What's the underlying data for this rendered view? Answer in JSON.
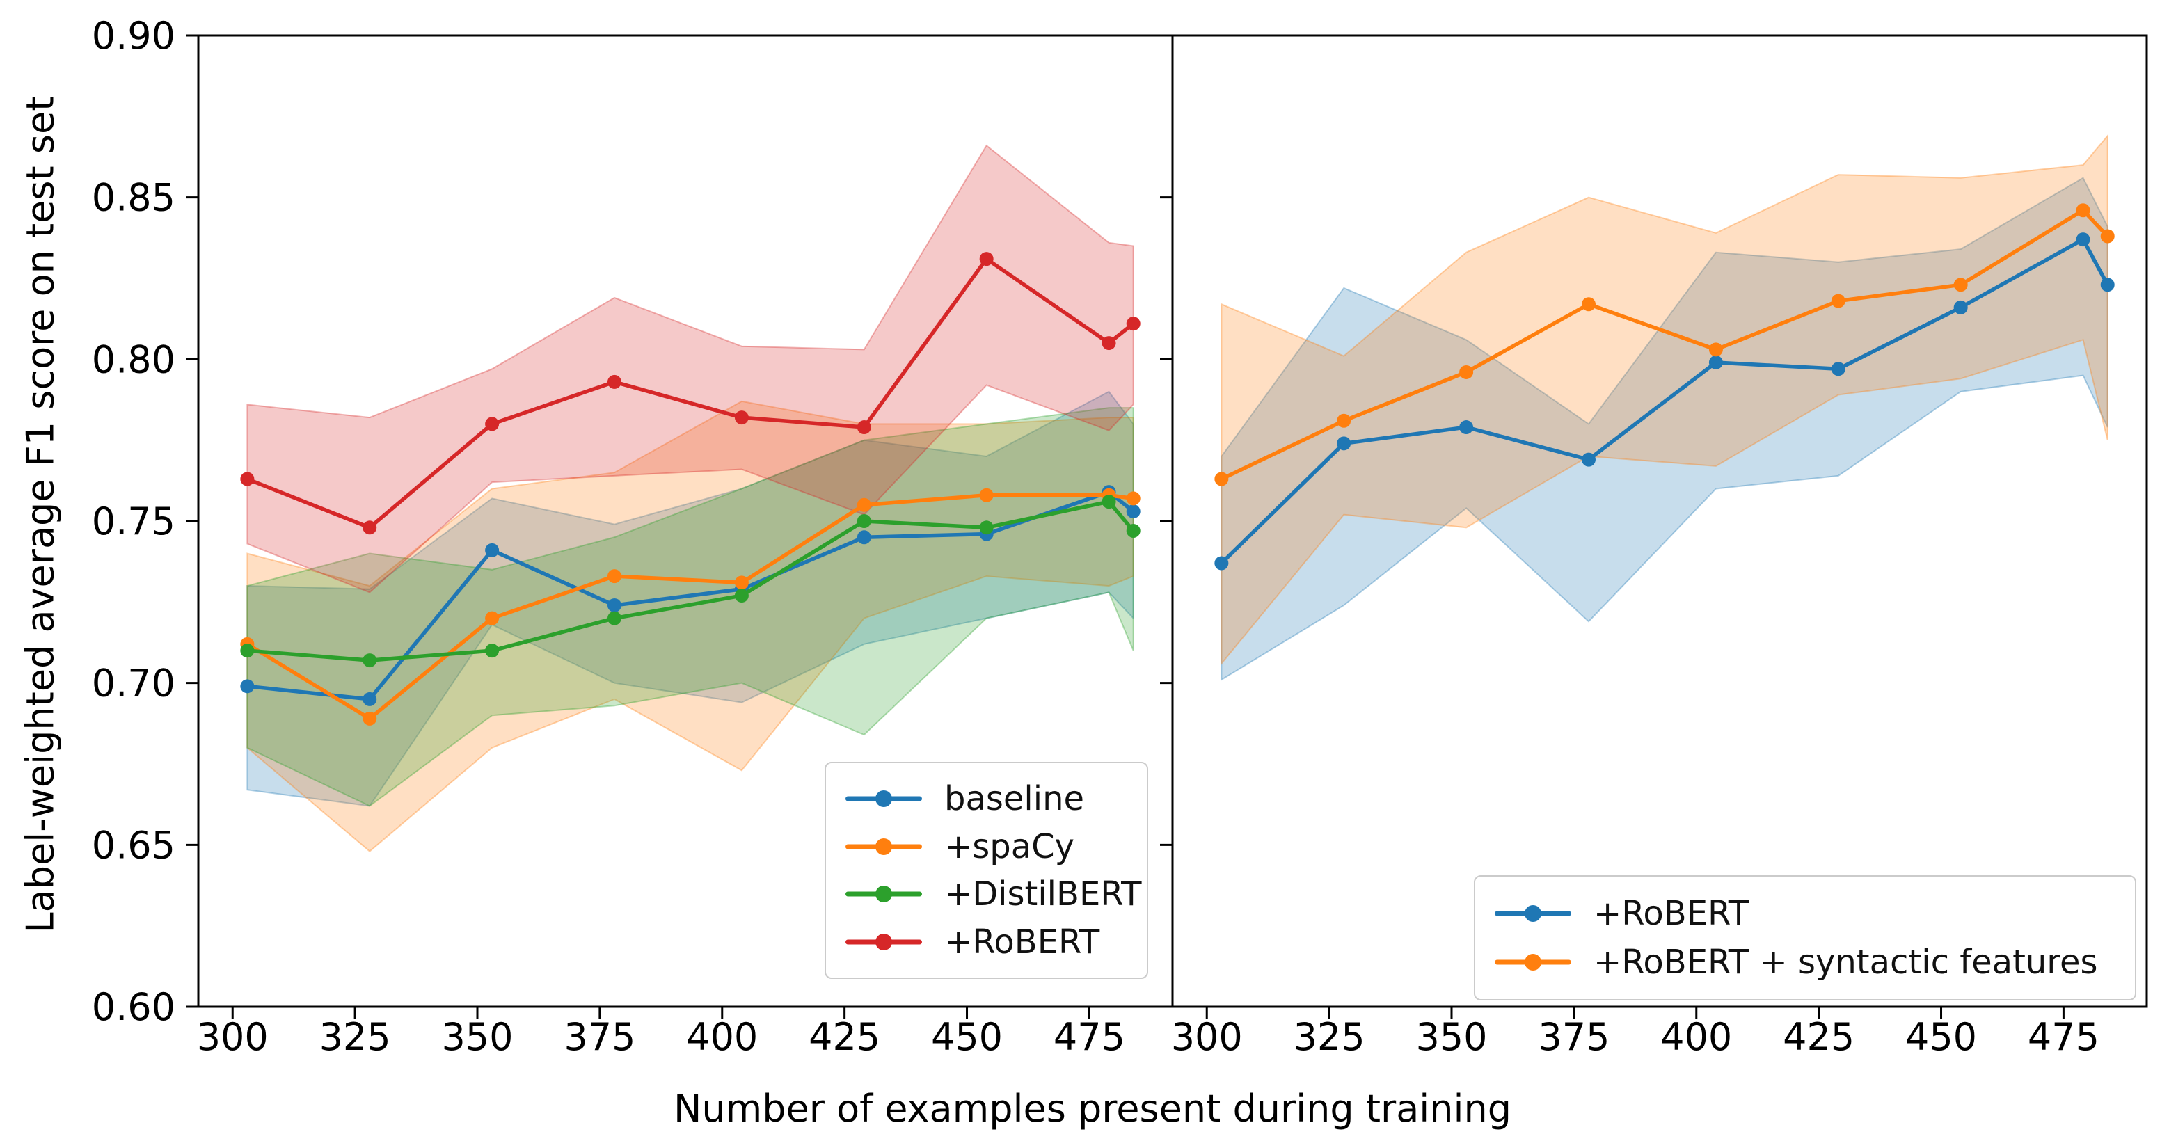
{
  "figure": {
    "background": "#ffffff",
    "ylabel": "Label-weighted average F1 score on test set",
    "xlabel": "Number of examples present during training"
  },
  "chart_data": [
    {
      "type": "line",
      "panel": "left",
      "x": [
        303,
        328,
        353,
        378,
        404,
        429,
        454,
        479,
        484
      ],
      "xlim": [
        293,
        492
      ],
      "ylim": [
        0.6,
        0.9
      ],
      "xticks": [
        300,
        325,
        350,
        375,
        400,
        425,
        450,
        475
      ],
      "xtick_labels": [
        "300",
        "325",
        "350",
        "375",
        "400",
        "425",
        "450",
        "475"
      ],
      "yticks": [
        0.9,
        0.85,
        0.8,
        0.75,
        0.7,
        0.65,
        0.6
      ],
      "ytick_labels": [
        "0.90",
        "0.85",
        "0.80",
        "0.75",
        "0.70",
        "0.65",
        "0.60"
      ],
      "show_ytick_labels": true,
      "grid": false,
      "band_alpha": 0.25,
      "legend_position": "lower right",
      "series": [
        {
          "name": "baseline",
          "color": "#1f77b4",
          "values": [
            0.699,
            0.695,
            0.741,
            0.724,
            0.729,
            0.745,
            0.746,
            0.759,
            0.753
          ],
          "band_upper": [
            0.73,
            0.729,
            0.757,
            0.749,
            0.76,
            0.775,
            0.77,
            0.79,
            0.78
          ],
          "band_lower": [
            0.667,
            0.662,
            0.718,
            0.7,
            0.694,
            0.712,
            0.72,
            0.728,
            0.72
          ]
        },
        {
          "name": "+spaCy",
          "color": "#ff7f0e",
          "values": [
            0.712,
            0.689,
            0.72,
            0.733,
            0.731,
            0.755,
            0.758,
            0.758,
            0.757
          ],
          "band_upper": [
            0.74,
            0.73,
            0.76,
            0.765,
            0.787,
            0.78,
            0.78,
            0.782,
            0.782
          ],
          "band_lower": [
            0.68,
            0.648,
            0.68,
            0.695,
            0.673,
            0.72,
            0.733,
            0.73,
            0.733
          ]
        },
        {
          "name": "+DistilBERT",
          "color": "#2ca02c",
          "values": [
            0.71,
            0.707,
            0.71,
            0.72,
            0.727,
            0.75,
            0.748,
            0.756,
            0.747
          ],
          "band_upper": [
            0.73,
            0.74,
            0.735,
            0.745,
            0.76,
            0.775,
            0.78,
            0.785,
            0.785
          ],
          "band_lower": [
            0.68,
            0.662,
            0.69,
            0.693,
            0.7,
            0.684,
            0.72,
            0.728,
            0.71
          ]
        },
        {
          "name": "+RoBERT",
          "color": "#d62728",
          "values": [
            0.763,
            0.748,
            0.78,
            0.793,
            0.782,
            0.779,
            0.831,
            0.805,
            0.811
          ],
          "band_upper": [
            0.786,
            0.782,
            0.797,
            0.819,
            0.804,
            0.803,
            0.866,
            0.836,
            0.835
          ],
          "band_lower": [
            0.743,
            0.728,
            0.762,
            0.764,
            0.766,
            0.752,
            0.792,
            0.778,
            0.786
          ]
        }
      ]
    },
    {
      "type": "line",
      "panel": "right",
      "x": [
        303,
        328,
        353,
        378,
        404,
        429,
        454,
        479,
        484
      ],
      "xlim": [
        293,
        492
      ],
      "ylim": [
        0.6,
        0.9
      ],
      "xticks": [
        300,
        325,
        350,
        375,
        400,
        425,
        450,
        475
      ],
      "xtick_labels": [
        "300",
        "325",
        "350",
        "375",
        "400",
        "425",
        "450",
        "475"
      ],
      "yticks": [
        0.9,
        0.85,
        0.8,
        0.75,
        0.7,
        0.65,
        0.6
      ],
      "ytick_labels": [
        "0.90",
        "0.85",
        "0.80",
        "0.75",
        "0.70",
        "0.65",
        "0.60"
      ],
      "show_ytick_labels": false,
      "grid": false,
      "band_alpha": 0.25,
      "legend_position": "lower right",
      "series": [
        {
          "name": "+RoBERT",
          "color": "#1f77b4",
          "values": [
            0.737,
            0.774,
            0.779,
            0.769,
            0.799,
            0.797,
            0.816,
            0.837,
            0.823
          ],
          "band_upper": [
            0.77,
            0.822,
            0.806,
            0.78,
            0.833,
            0.83,
            0.834,
            0.856,
            0.841
          ],
          "band_lower": [
            0.701,
            0.724,
            0.754,
            0.719,
            0.76,
            0.764,
            0.79,
            0.795,
            0.779
          ]
        },
        {
          "name": "+RoBERT + syntactic features",
          "color": "#ff7f0e",
          "values": [
            0.763,
            0.781,
            0.796,
            0.817,
            0.803,
            0.818,
            0.823,
            0.846,
            0.838
          ],
          "band_upper": [
            0.817,
            0.801,
            0.833,
            0.85,
            0.839,
            0.857,
            0.856,
            0.86,
            0.869
          ],
          "band_lower": [
            0.706,
            0.752,
            0.748,
            0.77,
            0.767,
            0.789,
            0.794,
            0.806,
            0.775
          ]
        }
      ]
    }
  ]
}
